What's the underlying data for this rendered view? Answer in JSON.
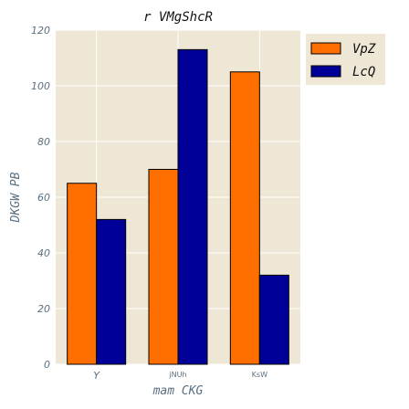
{
  "chart_data": {
    "type": "bar",
    "title": "r VMgShcR",
    "xlabel": "mam  CKG",
    "ylabel": "DKGW PB",
    "categories": [
      "Y",
      "jNUh",
      "KsW"
    ],
    "series": [
      {
        "name": "VpZ",
        "values": [
          65,
          70,
          105
        ],
        "color": "#ff6f00"
      },
      {
        "name": "LcQ",
        "values": [
          52,
          113,
          32
        ],
        "color": "#000099"
      }
    ],
    "ylim": [
      0,
      120
    ],
    "yticks": [
      0,
      20,
      40,
      60,
      80,
      100,
      120
    ],
    "grid": true,
    "legend_position": "outside-right",
    "plot_background": "#efe7d6",
    "grid_color": "#ffffff"
  }
}
